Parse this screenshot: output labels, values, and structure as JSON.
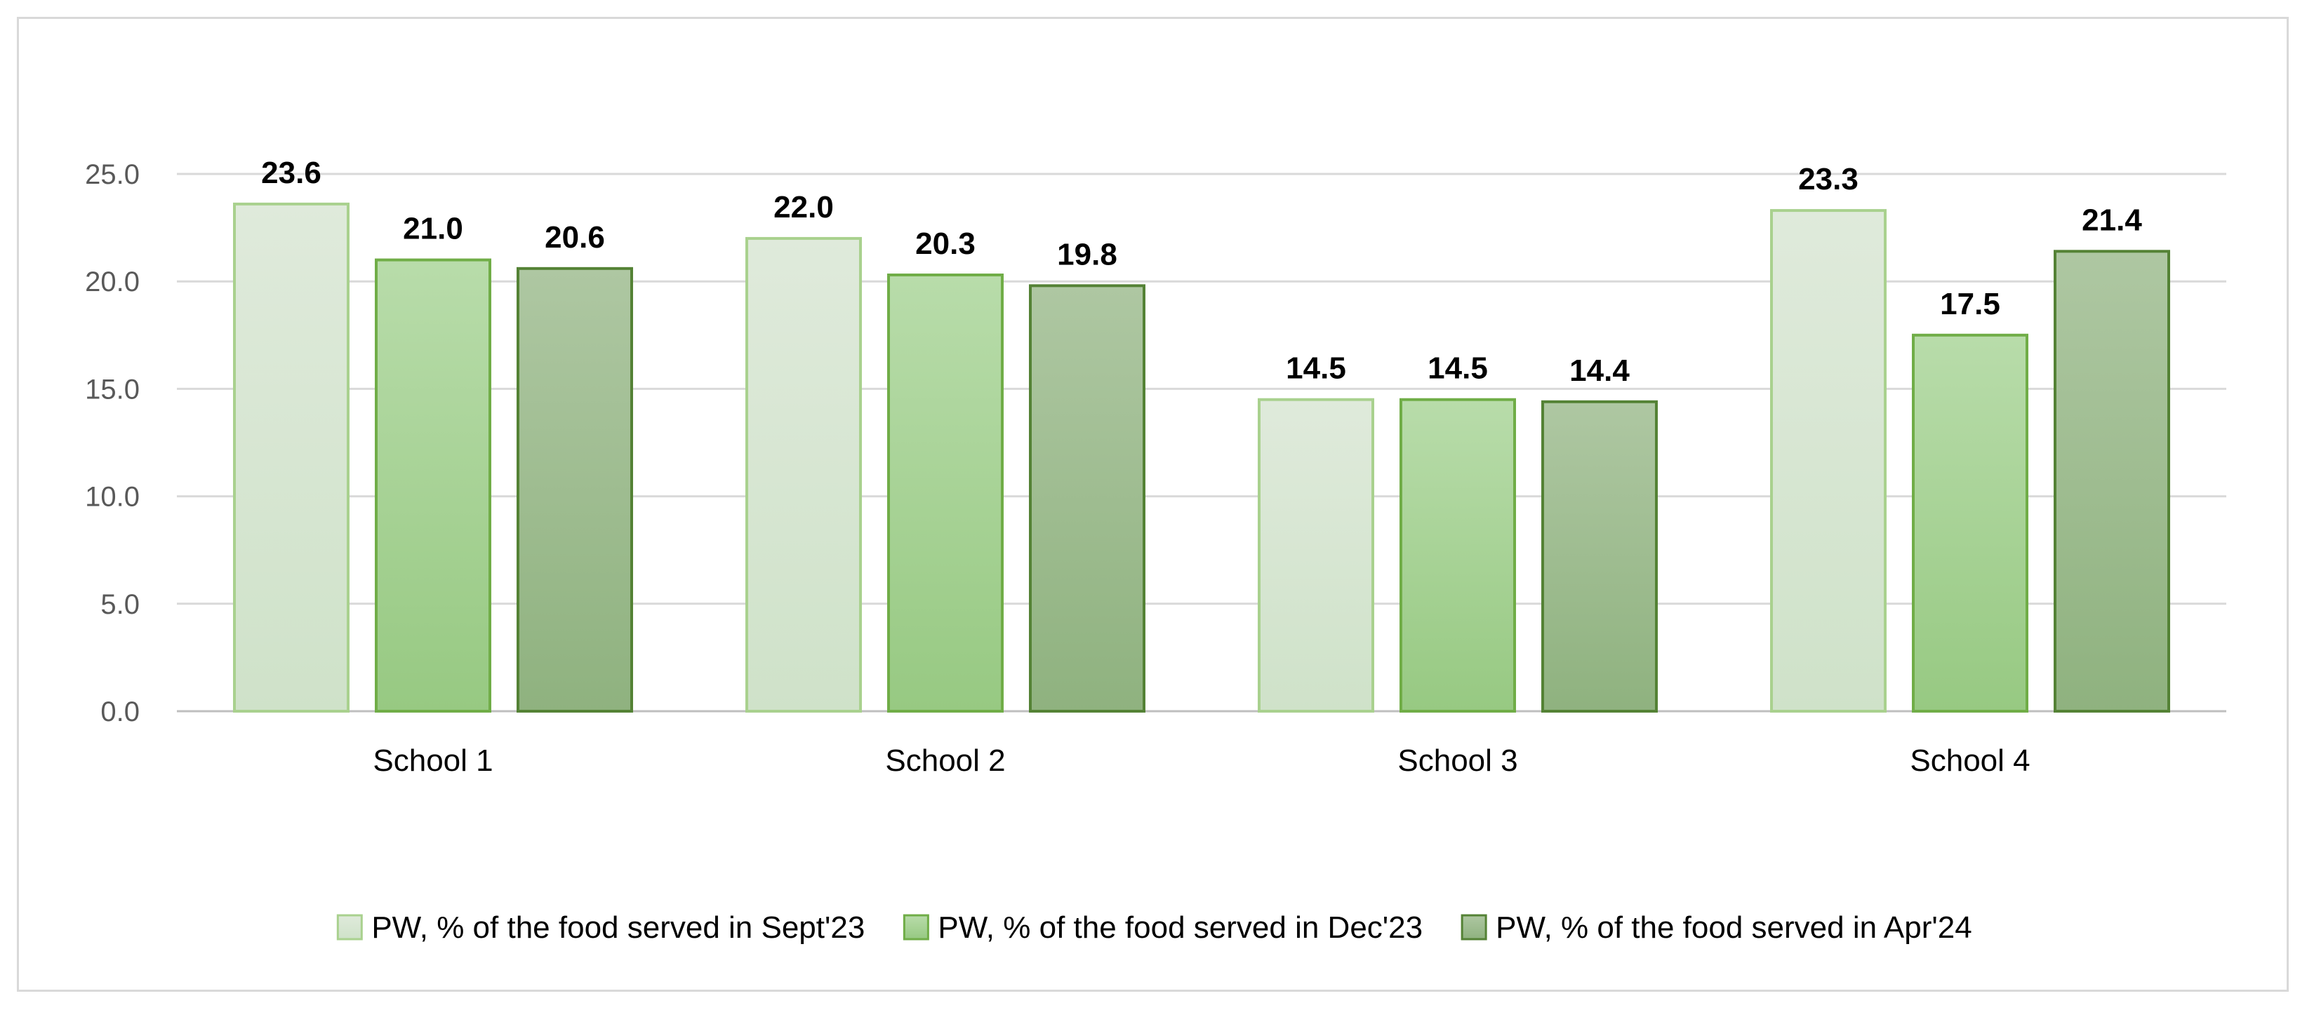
{
  "chart_data": {
    "type": "bar",
    "title": "",
    "xlabel": "",
    "ylabel": "",
    "ylim": [
      0,
      25
    ],
    "yticks": [
      "0.0",
      "5.0",
      "10.0",
      "15.0",
      "20.0",
      "25.0"
    ],
    "grid": true,
    "legend_position": "bottom",
    "categories": [
      "School 1",
      "School 2",
      "School 3",
      "School 4"
    ],
    "series": [
      {
        "name": "PW, % of the food served in Sept'23",
        "values": [
          23.6,
          22.0,
          14.5,
          23.3
        ],
        "labels": [
          "23.6",
          "22.0",
          "14.5",
          "23.3"
        ],
        "fill_top": "#dfeadb",
        "fill_bottom": "#cfe2c9",
        "stroke": "#a9d18e"
      },
      {
        "name": "PW, % of the food served in Dec'23",
        "values": [
          21.0,
          20.3,
          14.5,
          17.5
        ],
        "labels": [
          "21.0",
          "20.3",
          "14.5",
          "17.5"
        ],
        "fill_top": "#b8dcaa",
        "fill_bottom": "#97c982",
        "stroke": "#70ad47"
      },
      {
        "name": "PW, % of the food served in Apr'24",
        "values": [
          20.6,
          19.8,
          14.4,
          21.4
        ],
        "labels": [
          "20.6",
          "19.8",
          "14.4",
          "21.4"
        ],
        "fill_top": "#aec7a2",
        "fill_bottom": "#8fb27f",
        "stroke": "#548235"
      }
    ]
  }
}
